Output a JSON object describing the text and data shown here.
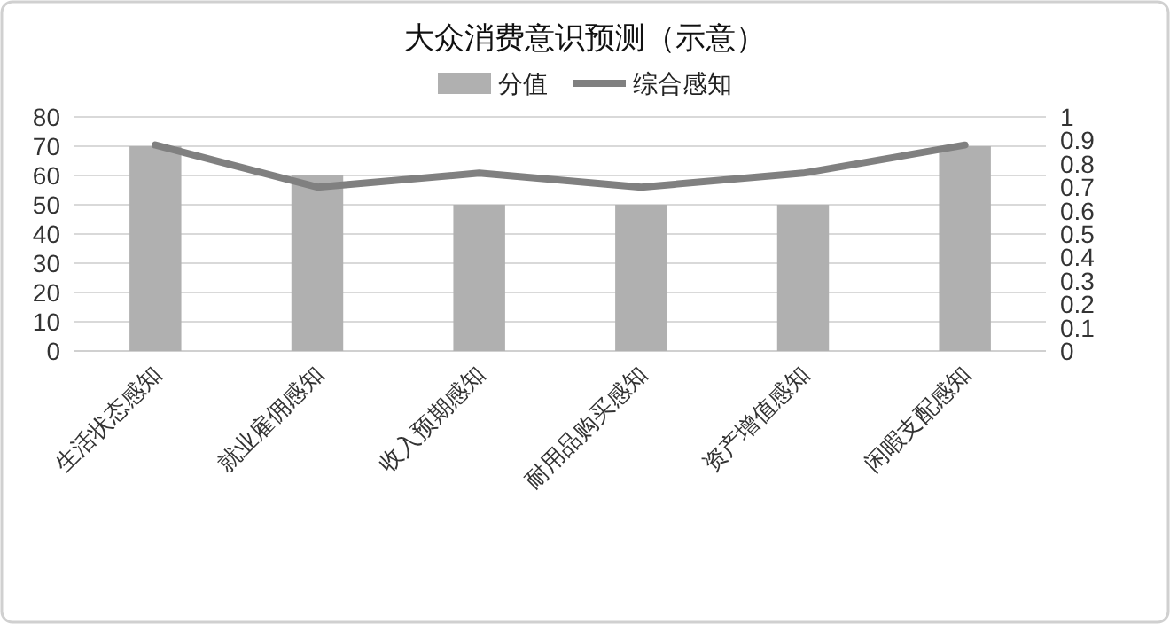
{
  "chart_data": {
    "type": "bar",
    "title": "大众消费意识预测（示意）",
    "categories": [
      "生活状态感知",
      "就业雇佣感知",
      "收入预期感知",
      "耐用品购买感知",
      "资产增值感知",
      "闲暇支配感知"
    ],
    "series": [
      {
        "name": "分值",
        "color": "#b0b0b0",
        "values": [
          70,
          60,
          50,
          50,
          50,
          70
        ]
      },
      {
        "name": "综合感知",
        "type": "line",
        "axis": "y2",
        "color": "#808080",
        "values": [
          0.88,
          0.7,
          0.76,
          0.7,
          0.76,
          0.88
        ]
      }
    ],
    "ylim": [
      0,
      80
    ],
    "yticks": [
      0,
      10,
      20,
      30,
      40,
      50,
      60,
      70,
      80
    ],
    "y2lim": [
      0,
      1
    ],
    "y2ticks": [
      0,
      0.1,
      0.2,
      0.3,
      0.4,
      0.5,
      0.6,
      0.7,
      0.8,
      0.9,
      1
    ],
    "grid": "y",
    "legend": "top",
    "marker": "none",
    "line_style": "solid"
  }
}
